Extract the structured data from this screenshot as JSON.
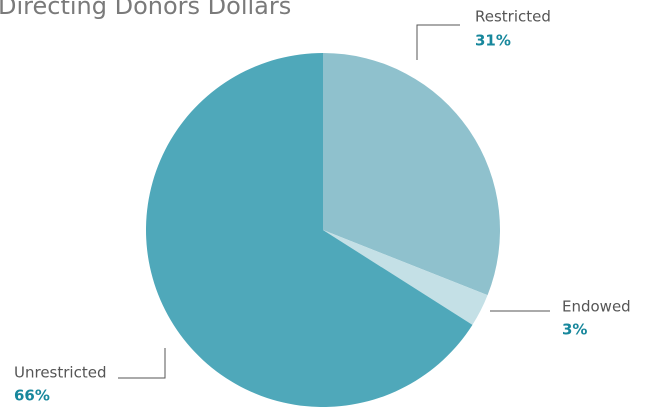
{
  "chart_data": {
    "type": "pie",
    "title": "Directing Donors Dollars",
    "categories": [
      "Restricted",
      "Endowed",
      "Unrestricted"
    ],
    "values": [
      31,
      3,
      66
    ],
    "value_labels": [
      "31%",
      "3%",
      "66%"
    ],
    "colors": [
      "#8fc1cd",
      "#c4e0e6",
      "#4fa8ba"
    ]
  }
}
